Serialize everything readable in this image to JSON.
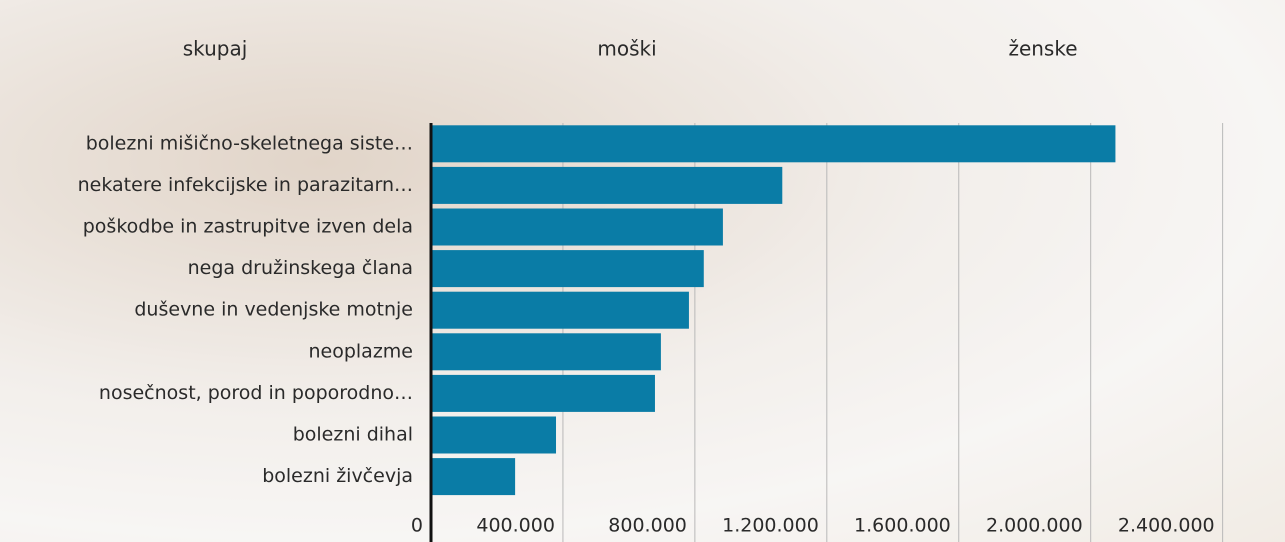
{
  "tabs": [
    "skupaj",
    "moški",
    "ženske"
  ],
  "chart_data": {
    "type": "bar",
    "orientation": "horizontal",
    "categories": [
      "bolezni mišično-skeletnega siste…",
      "nekatere infekcijske in parazitarn…",
      "poškodbe in zastrupitve izven dela",
      "nega družinskega člana",
      "duševne in vedenjske motnje",
      "neoplazme",
      "nosečnost, porod in poporodno…",
      "bolezni dihal",
      "bolezni živčevja"
    ],
    "values": [
      2075000,
      1065000,
      885000,
      827000,
      782000,
      697000,
      679000,
      379000,
      255000
    ],
    "color": "#0a7ca6",
    "xlim": [
      0,
      2580000
    ],
    "xticks": [
      0,
      {
        "value": 400000,
        "label": "400.000"
      },
      {
        "value": 800000,
        "label": "800.000"
      },
      {
        "value": 1200000,
        "label": "1.200.000"
      },
      {
        "value": 1600000,
        "label": "1.600.000"
      },
      {
        "value": 2000000,
        "label": "2.000.000"
      },
      {
        "value": 2400000,
        "label": "2.400.000"
      }
    ],
    "grid": true
  }
}
